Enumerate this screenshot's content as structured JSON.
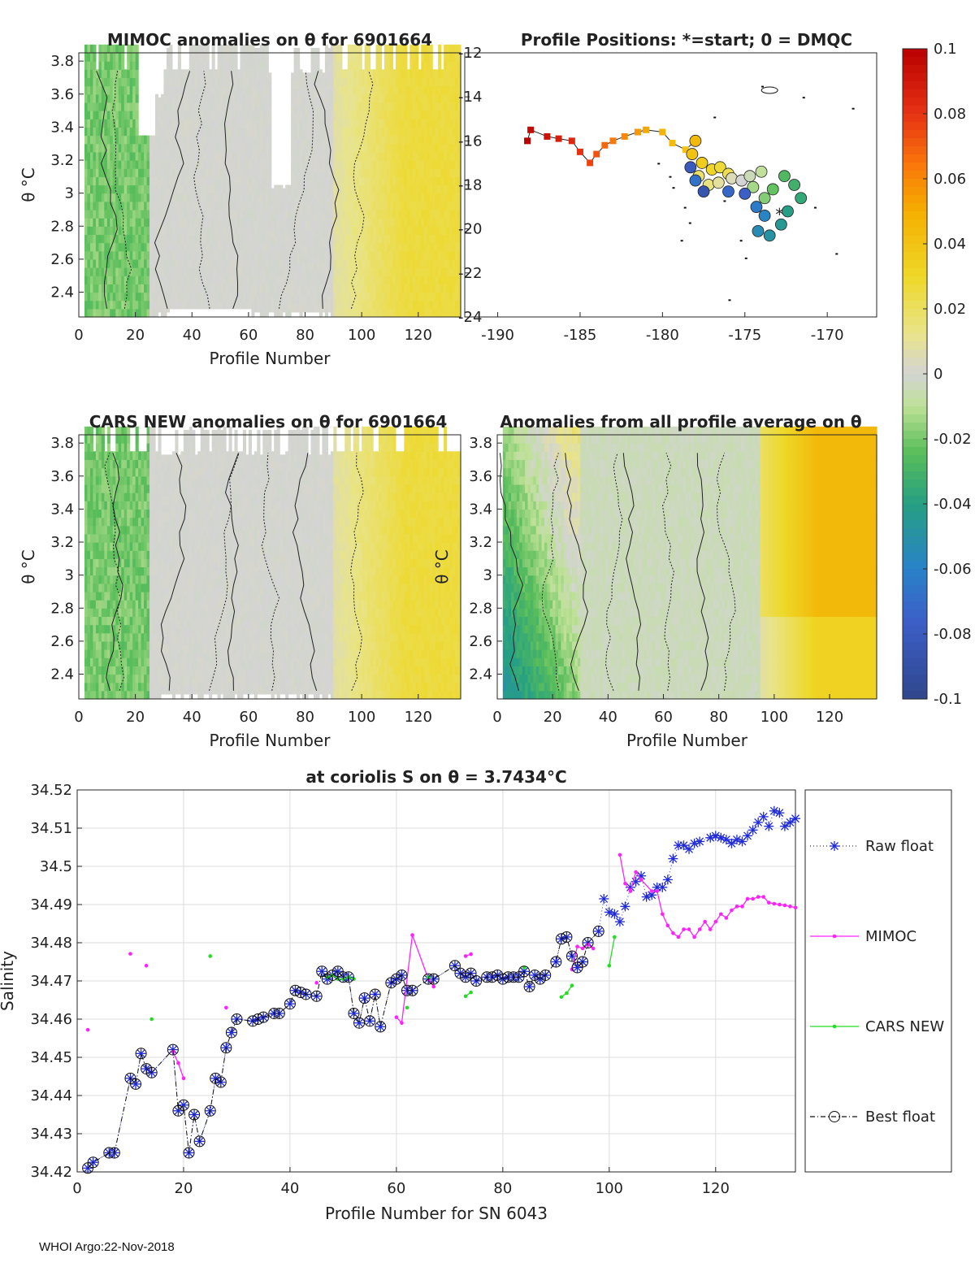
{
  "footer": "WHOI Argo:22-Nov-2018",
  "colors": {
    "raw": "#1f2bd9",
    "mimoc": "#ff22ff",
    "cars": "#22dd22",
    "best": "#111111"
  },
  "colorbar": {
    "ticks": [
      "0.1",
      "0.08",
      "0.06",
      "0.04",
      "0.02",
      "0",
      "-0.02",
      "-0.04",
      "-0.06",
      "-0.08",
      "-0.1"
    ]
  },
  "chart_data": [
    {
      "id": "mimoc",
      "type": "heatmap",
      "title": "MIMOC anomalies on θ  for 6901664",
      "xlabel": "Profile Number",
      "ylabel": "θ °C",
      "xlim": [
        0,
        135
      ],
      "ylim": [
        2.25,
        3.85
      ],
      "xticks": [
        0,
        20,
        40,
        60,
        80,
        100,
        120
      ],
      "yticks": [
        2.4,
        2.6,
        2.8,
        3.0,
        3.2,
        3.4,
        3.6,
        3.8
      ],
      "ytick_labels": [
        "2.4",
        "2.6",
        "2.8",
        "3",
        "3.2",
        "3.4",
        "3.6",
        "3.8"
      ]
    },
    {
      "id": "positions",
      "type": "scatter",
      "title": "Profile Positions: *=start; 0 = DMQC",
      "xlim": [
        -192,
        -167
      ],
      "ylim": [
        -24,
        -12
      ],
      "xticks": [
        -190,
        -185,
        -180,
        -175,
        -170
      ],
      "yticks": [
        -24,
        -22,
        -20,
        -18,
        -16,
        -14,
        -12
      ]
    },
    {
      "id": "cars",
      "type": "heatmap",
      "title": "CARS NEW anomalies on θ for 6901664",
      "xlabel": "Profile Number",
      "ylabel": "θ °C",
      "xlim": [
        0,
        135
      ],
      "ylim": [
        2.25,
        3.85
      ],
      "xticks": [
        0,
        20,
        40,
        60,
        80,
        100,
        120
      ],
      "yticks": [
        2.4,
        2.6,
        2.8,
        3.0,
        3.2,
        3.4,
        3.6,
        3.8
      ],
      "ytick_labels": [
        "2.4",
        "2.6",
        "2.8",
        "3",
        "3.2",
        "3.4",
        "3.6",
        "3.8"
      ]
    },
    {
      "id": "avg",
      "type": "heatmap",
      "title": "Anomalies from all profile average on θ",
      "xlabel": "Profile Number",
      "ylabel": "θ °C",
      "xlim": [
        0,
        137
      ],
      "ylim": [
        2.25,
        3.85
      ],
      "xticks": [
        0,
        20,
        40,
        60,
        80,
        100,
        120
      ],
      "yticks": [
        2.4,
        2.6,
        2.8,
        3.0,
        3.2,
        3.4,
        3.6,
        3.8
      ],
      "ytick_labels": [
        "2.4",
        "2.6",
        "2.8",
        "3",
        "3.2",
        "3.4",
        "3.6",
        "3.8"
      ]
    },
    {
      "id": "salinity",
      "type": "line",
      "title": "at coriolis S on θ = 3.7434°C",
      "xlabel": "Profile Number for SN 6043",
      "ylabel": "Salinity",
      "xlim": [
        0,
        135
      ],
      "ylim": [
        34.42,
        34.52
      ],
      "xticks": [
        0,
        20,
        40,
        60,
        80,
        100,
        120
      ],
      "yticks": [
        34.42,
        34.43,
        34.44,
        34.45,
        34.46,
        34.47,
        34.48,
        34.49,
        34.5,
        34.51,
        34.52
      ],
      "ytick_labels": [
        "34.42",
        "34.43",
        "34.44",
        "34.45",
        "34.46",
        "34.47",
        "34.48",
        "34.49",
        "34.5",
        "34.51",
        "34.52"
      ],
      "legend": [
        "Raw float",
        "MIMOC",
        "CARS NEW",
        "Best float"
      ],
      "series": [
        {
          "name": "Best float",
          "x": [
            2,
            3,
            6,
            7,
            10,
            11,
            12,
            13,
            14,
            18,
            19,
            20,
            21,
            22,
            23,
            25,
            26,
            27,
            28,
            29,
            30,
            33,
            34,
            35,
            37,
            38,
            40,
            41,
            42,
            43,
            45,
            46,
            47,
            48,
            49,
            50,
            51,
            52,
            53,
            54,
            55,
            56,
            57,
            59,
            60,
            61,
            62,
            63,
            66,
            67,
            71,
            72,
            73,
            74,
            75,
            77,
            78,
            79,
            80,
            81,
            82,
            83,
            84,
            85,
            86,
            87,
            88,
            90,
            91,
            92,
            93,
            94,
            95,
            96,
            98
          ],
          "y": [
            34.421,
            34.4225,
            34.425,
            34.425,
            34.4445,
            34.443,
            34.451,
            34.447,
            34.446,
            34.452,
            34.436,
            34.4375,
            34.425,
            34.435,
            34.428,
            34.436,
            34.4445,
            34.4435,
            34.4525,
            34.4565,
            34.46,
            34.4595,
            34.46,
            34.4605,
            34.4615,
            34.4615,
            34.464,
            34.4675,
            34.467,
            34.4665,
            34.466,
            34.4725,
            34.4705,
            34.4715,
            34.4725,
            34.471,
            34.471,
            34.4615,
            34.459,
            34.4655,
            34.4595,
            34.4665,
            34.458,
            34.4695,
            34.4705,
            34.4715,
            34.4675,
            34.4675,
            34.4705,
            34.4705,
            34.474,
            34.472,
            34.471,
            34.472,
            34.47,
            34.471,
            34.471,
            34.4715,
            34.4705,
            34.471,
            34.471,
            34.471,
            34.4725,
            34.4685,
            34.4715,
            34.4705,
            34.4715,
            34.475,
            34.481,
            34.4815,
            34.4765,
            34.4735,
            34.475,
            34.48,
            34.483
          ]
        },
        {
          "name": "Raw float",
          "x": [
            2,
            3,
            6,
            7,
            10,
            11,
            12,
            13,
            14,
            18,
            19,
            20,
            21,
            22,
            23,
            25,
            26,
            27,
            28,
            29,
            30,
            33,
            34,
            35,
            37,
            38,
            40,
            41,
            42,
            43,
            45,
            46,
            47,
            48,
            49,
            50,
            51,
            52,
            53,
            54,
            55,
            56,
            57,
            59,
            60,
            61,
            62,
            63,
            66,
            67,
            71,
            72,
            73,
            74,
            75,
            77,
            78,
            79,
            80,
            81,
            82,
            83,
            84,
            85,
            86,
            87,
            88,
            90,
            91,
            92,
            93,
            94,
            95,
            96,
            98,
            99,
            100,
            101,
            102,
            103,
            104,
            105,
            106,
            107,
            108,
            109,
            110,
            111,
            112,
            113,
            114,
            115,
            116,
            117,
            119,
            120,
            121,
            122,
            123,
            124,
            125,
            126,
            127,
            128,
            129,
            130,
            131,
            132,
            133,
            134,
            135
          ],
          "y": [
            34.421,
            34.4225,
            34.425,
            34.425,
            34.4445,
            34.443,
            34.451,
            34.447,
            34.446,
            34.452,
            34.436,
            34.4375,
            34.425,
            34.435,
            34.428,
            34.436,
            34.4445,
            34.4435,
            34.4525,
            34.4565,
            34.46,
            34.4595,
            34.46,
            34.4605,
            34.4615,
            34.4615,
            34.464,
            34.4675,
            34.467,
            34.4665,
            34.466,
            34.4725,
            34.4705,
            34.4715,
            34.4725,
            34.471,
            34.471,
            34.4615,
            34.459,
            34.4655,
            34.4595,
            34.4665,
            34.458,
            34.4695,
            34.4705,
            34.4715,
            34.4675,
            34.4675,
            34.4705,
            34.4705,
            34.474,
            34.472,
            34.471,
            34.472,
            34.47,
            34.471,
            34.471,
            34.4715,
            34.4705,
            34.471,
            34.471,
            34.471,
            34.4725,
            34.4685,
            34.4715,
            34.4705,
            34.4715,
            34.475,
            34.481,
            34.4815,
            34.4765,
            34.4735,
            34.475,
            34.48,
            34.483,
            34.4915,
            34.488,
            34.4875,
            34.4855,
            34.4895,
            34.4945,
            34.496,
            34.4975,
            34.492,
            34.4925,
            34.4945,
            34.4945,
            34.4965,
            34.502,
            34.5055,
            34.5055,
            34.5045,
            34.506,
            34.5065,
            34.5075,
            34.508,
            34.5075,
            34.507,
            34.506,
            34.507,
            34.5065,
            34.508,
            34.5095,
            34.5115,
            34.513,
            34.5105,
            34.5145,
            34.514,
            34.5105,
            34.5115,
            34.5125
          ]
        },
        {
          "name": "MIMOC",
          "segments": [
            {
              "x": [
                2
              ],
              "y": [
                34.4572
              ]
            },
            {
              "x": [
                10
              ],
              "y": [
                34.4771
              ]
            },
            {
              "x": [
                13
              ],
              "y": [
                34.474
              ]
            },
            {
              "x": [
                18,
                19,
                20
              ],
              "y": [
                34.4515,
                34.4485,
                34.4445
              ]
            },
            {
              "x": [
                28
              ],
              "y": [
                34.463
              ]
            },
            {
              "x": [
                45
              ],
              "y": [
                34.4695
              ]
            },
            {
              "x": [
                60,
                61,
                63,
                66,
                67
              ],
              "y": [
                34.4605,
                34.459,
                34.482,
                34.4705,
                34.4685
              ]
            },
            {
              "x": [
                73,
                74
              ],
              "y": [
                34.4765,
                34.477
              ]
            },
            {
              "x": [
                93,
                94,
                95,
                96,
                97
              ],
              "y": [
                34.473,
                34.479,
                34.4785,
                34.4795,
                34.4785
              ]
            },
            {
              "x": [
                102,
                103,
                104,
                105,
                106,
                108,
                109,
                110,
                111,
                112,
                113,
                114,
                115,
                116,
                117,
                118,
                119,
                120,
                121,
                122,
                123,
                124,
                125,
                126,
                127,
                128,
                129,
                130,
                131,
                132,
                133,
                134,
                135
              ],
              "y": [
                34.503,
                34.4955,
                34.4935,
                34.4985,
                34.4965,
                34.4935,
                34.4935,
                34.4875,
                34.4845,
                34.4825,
                34.4815,
                34.4835,
                34.4835,
                34.4815,
                34.4835,
                34.4855,
                34.4835,
                34.4855,
                34.4875,
                34.4865,
                34.4885,
                34.4895,
                34.4895,
                34.4915,
                34.4915,
                34.492,
                34.492,
                34.4905,
                34.4902,
                34.49,
                34.4898,
                34.4895,
                34.4892
              ]
            }
          ]
        },
        {
          "name": "CARS NEW",
          "segments": [
            {
              "x": [
                14
              ],
              "y": [
                34.46
              ]
            },
            {
              "x": [
                25
              ],
              "y": [
                34.4765
              ]
            },
            {
              "x": [
                47,
                48,
                49,
                50,
                51,
                52
              ],
              "y": [
                34.471,
                34.4715,
                34.4705,
                34.4705,
                34.471,
                34.4705
              ]
            },
            {
              "x": [
                62
              ],
              "y": [
                34.463
              ]
            },
            {
              "x": [
                66
              ],
              "y": [
                34.471
              ]
            },
            {
              "x": [
                73,
                74
              ],
              "y": [
                34.466,
                34.467
              ]
            },
            {
              "x": [
                84
              ],
              "y": [
                34.4735
              ]
            },
            {
              "x": [
                91,
                92,
                93
              ],
              "y": [
                34.4658,
                34.4668,
                34.4688
              ]
            },
            {
              "x": [
                100,
                101
              ],
              "y": [
                34.474,
                34.4815
              ]
            }
          ]
        }
      ]
    }
  ]
}
